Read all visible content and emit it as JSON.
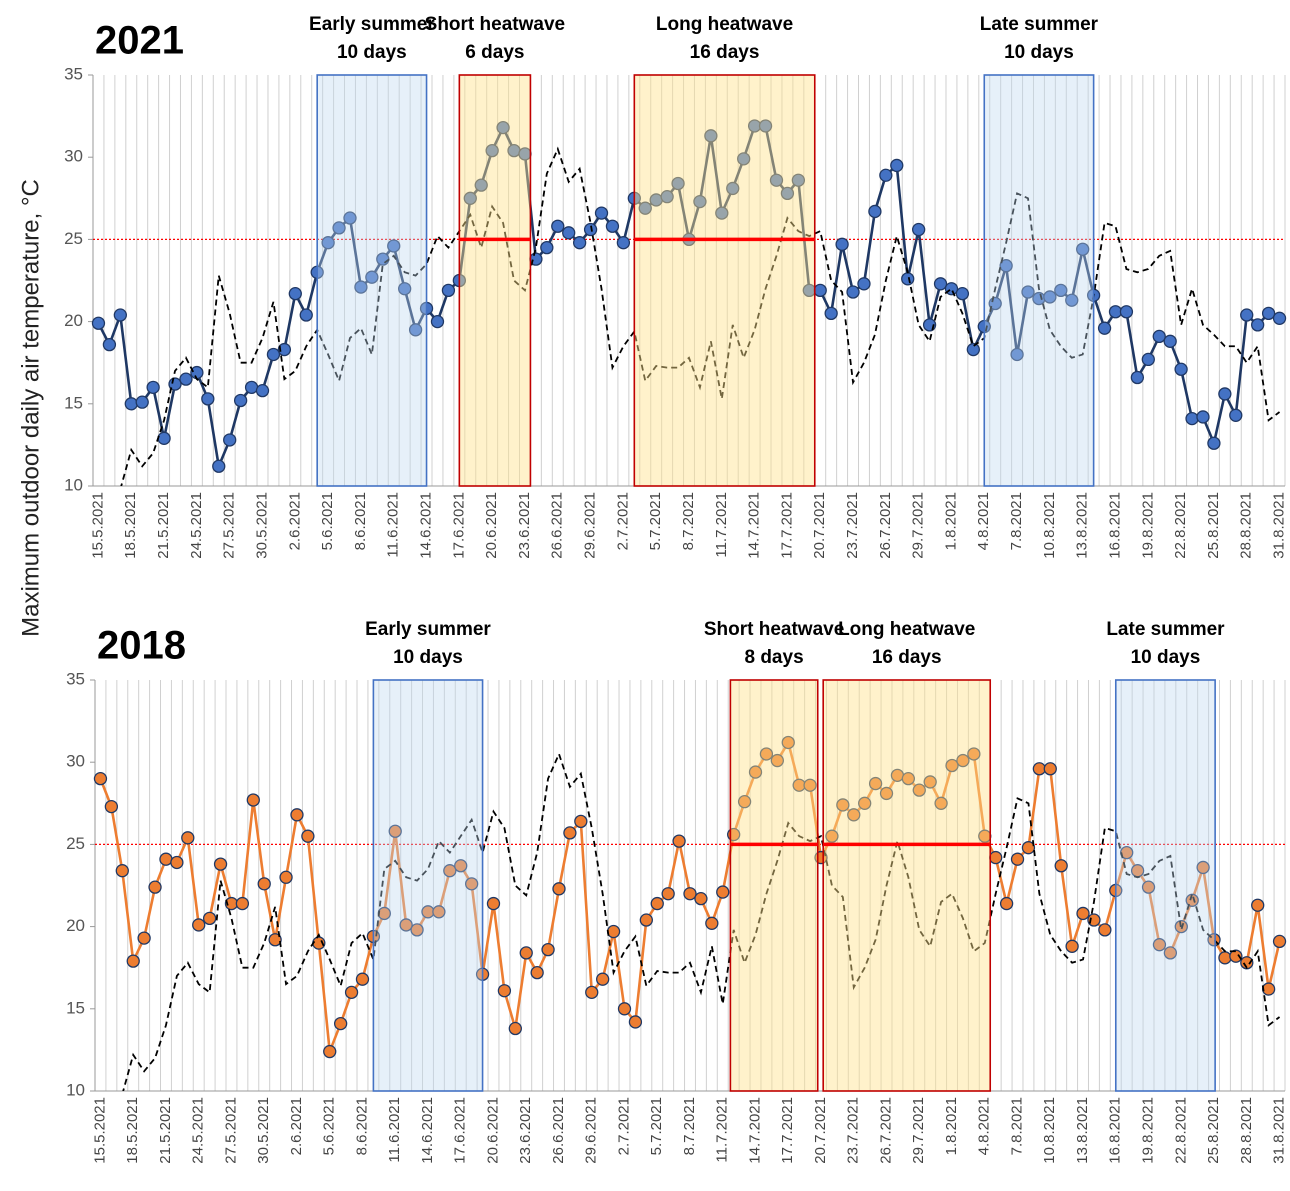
{
  "ylabel": "Maximum outdoor daily air temperature, °C",
  "chart_data": [
    {
      "type": "line",
      "title": "2021",
      "categories": [
        "15.5.2021",
        null,
        null,
        "18.5.2021",
        null,
        null,
        "21.5.2021",
        null,
        null,
        "24.5.2021",
        null,
        null,
        "27.5.2021",
        null,
        null,
        "30.5.2021",
        null,
        null,
        "2.6.2021",
        null,
        null,
        "5.6.2021",
        null,
        null,
        "8.6.2021",
        null,
        null,
        "11.6.2021",
        null,
        null,
        "14.6.2021",
        null,
        null,
        "17.6.2021",
        null,
        null,
        "20.6.2021",
        null,
        null,
        "23.6.2021",
        null,
        null,
        "26.6.2021",
        null,
        null,
        "29.6.2021",
        null,
        null,
        "2.7.2021",
        null,
        null,
        "5.7.2021",
        null,
        null,
        "8.7.2021",
        null,
        null,
        "11.7.2021",
        null,
        null,
        "14.7.2021",
        null,
        null,
        "17.7.2021",
        null,
        null,
        "20.7.2021",
        null,
        null,
        "23.7.2021",
        null,
        null,
        "26.7.2021",
        null,
        null,
        "29.7.2021",
        null,
        null,
        "1.8.2021",
        null,
        null,
        "4.8.2021",
        null,
        null,
        "7.8.2021",
        null,
        null,
        "10.8.2021",
        null,
        null,
        "13.8.2021",
        null,
        null,
        "16.8.2021",
        null,
        null,
        "19.8.2021",
        null,
        null,
        "22.8.2021",
        null,
        null,
        "25.8.2021",
        null,
        null,
        "28.8.2021",
        null,
        null,
        "31.8.2021"
      ],
      "series": [
        {
          "color": "#1f3864",
          "marker_color": "#4472c4",
          "dashed": false,
          "values": [
            19.9,
            18.6,
            20.4,
            15.0,
            15.1,
            16.0,
            12.9,
            16.2,
            16.5,
            16.9,
            15.3,
            11.2,
            12.8,
            15.2,
            16.0,
            15.8,
            18.0,
            18.3,
            21.7,
            20.4,
            23.0,
            24.8,
            25.7,
            26.3,
            22.1,
            22.7,
            23.8,
            24.6,
            22.0,
            19.5,
            20.8,
            20.0,
            21.9,
            22.5,
            27.5,
            28.3,
            30.4,
            31.8,
            30.4,
            30.2,
            23.8,
            24.5,
            25.8,
            25.4,
            24.8,
            25.6,
            26.6,
            25.8,
            24.8,
            27.5,
            26.9,
            27.4,
            27.6,
            28.4,
            25.0,
            27.3,
            31.3,
            26.6,
            28.1,
            29.9,
            31.9,
            31.9,
            28.6,
            27.8,
            28.6,
            21.9,
            21.9,
            20.5,
            24.7,
            21.8,
            22.3,
            26.7,
            28.9,
            29.5,
            22.6,
            25.6,
            19.8,
            22.3,
            22.0,
            21.7,
            18.3,
            19.7,
            21.1,
            23.4,
            18.0,
            21.8,
            21.4,
            21.5,
            21.9,
            21.3,
            24.4,
            21.6,
            19.6,
            20.6,
            20.6,
            16.6,
            17.7,
            19.1,
            18.8,
            17.1,
            14.1,
            14.2,
            12.6,
            15.6,
            14.3,
            20.4,
            19.8,
            20.5,
            20.2
          ]
        },
        {
          "color": "#000000",
          "dashed": true,
          "values": [
            null,
            null,
            9.8,
            12.2,
            11.2,
            12.0,
            14.0,
            17.0,
            17.8,
            16.5,
            16.0,
            22.8,
            20.5,
            17.5,
            17.5,
            19.0,
            21.2,
            16.5,
            17.0,
            18.5,
            19.5,
            18.0,
            16.4,
            19.0,
            19.6,
            18.0,
            23.5,
            24.0,
            23.0,
            22.8,
            23.5,
            25.2,
            24.5,
            25.5,
            26.5,
            24.5,
            27.0,
            26.0,
            22.5,
            21.9,
            24.5,
            29.0,
            30.5,
            28.5,
            29.3,
            26.0,
            22.0,
            17.2,
            18.5,
            19.4,
            16.4,
            17.3,
            17.2,
            17.2,
            17.8,
            16.0,
            18.8,
            15.3,
            19.8,
            17.8,
            19.5,
            22.0,
            24.0,
            26.3,
            25.5,
            25.2,
            25.5,
            22.5,
            21.8,
            16.3,
            17.5,
            19.2,
            22.5,
            25.2,
            23.0,
            19.8,
            18.8,
            21.5,
            22.0,
            20.5,
            18.5,
            19.0,
            22.0,
            24.8,
            27.8,
            27.5,
            22.0,
            19.5,
            18.5,
            17.8,
            18.0,
            21.5,
            26.0,
            25.8,
            23.2,
            23.0,
            23.2,
            24.0,
            24.3,
            19.8,
            22.0,
            19.8,
            19.2,
            18.5,
            18.5,
            17.5,
            18.5,
            14.0,
            14.5
          ]
        }
      ],
      "ylim": [
        10,
        35
      ],
      "yticks": [
        10,
        15,
        20,
        25,
        30,
        35
      ],
      "threshold": 25,
      "periods": [
        {
          "label": "Early summer",
          "days": "10 days",
          "range": [
            20,
            30
          ],
          "kind": "summer"
        },
        {
          "label": "Short heatwave",
          "days": "6 days",
          "range": [
            33,
            39.5
          ],
          "kind": "heatwave"
        },
        {
          "label": "Long heatwave",
          "days": "16 days",
          "range": [
            49,
            65.5
          ],
          "kind": "heatwave"
        },
        {
          "label": "Late summer",
          "days": "10 days",
          "range": [
            81,
            91
          ],
          "kind": "summer"
        }
      ]
    },
    {
      "type": "line",
      "title": "2018",
      "categories": [
        "15.5.2021",
        null,
        null,
        "18.5.2021",
        null,
        null,
        "21.5.2021",
        null,
        null,
        "24.5.2021",
        null,
        null,
        "27.5.2021",
        null,
        null,
        "30.5.2021",
        null,
        null,
        "2.6.2021",
        null,
        null,
        "5.6.2021",
        null,
        null,
        "8.6.2021",
        null,
        null,
        "11.6.2021",
        null,
        null,
        "14.6.2021",
        null,
        null,
        "17.6.2021",
        null,
        null,
        "20.6.2021",
        null,
        null,
        "23.6.2021",
        null,
        null,
        "26.6.2021",
        null,
        null,
        "29.6.2021",
        null,
        null,
        "2.7.2021",
        null,
        null,
        "5.7.2021",
        null,
        null,
        "8.7.2021",
        null,
        null,
        "11.7.2021",
        null,
        null,
        "14.7.2021",
        null,
        null,
        "17.7.2021",
        null,
        null,
        "20.7.2021",
        null,
        null,
        "23.7.2021",
        null,
        null,
        "26.7.2021",
        null,
        null,
        "29.7.2021",
        null,
        null,
        "1.8.2021",
        null,
        null,
        "4.8.2021",
        null,
        null,
        "7.8.2021",
        null,
        null,
        "10.8.2021",
        null,
        null,
        "13.8.2021",
        null,
        null,
        "16.8.2021",
        null,
        null,
        "19.8.2021",
        null,
        null,
        "22.8.2021",
        null,
        null,
        "25.8.2021",
        null,
        null,
        "28.8.2021",
        null,
        null,
        "31.8.2021"
      ],
      "series": [
        {
          "color": "#ed7d31",
          "marker_color": "#ed7d31",
          "dashed": false,
          "values": [
            29.0,
            27.3,
            23.4,
            17.9,
            19.3,
            22.4,
            24.1,
            23.9,
            25.4,
            20.1,
            20.5,
            23.8,
            21.4,
            21.4,
            27.7,
            22.6,
            19.2,
            23.0,
            26.8,
            25.5,
            19.0,
            12.4,
            14.1,
            16.0,
            16.8,
            19.4,
            20.8,
            25.8,
            20.1,
            19.8,
            20.9,
            20.9,
            23.4,
            23.7,
            22.6,
            17.1,
            21.4,
            16.1,
            13.8,
            18.4,
            17.2,
            18.6,
            22.3,
            25.7,
            26.4,
            16.0,
            16.8,
            19.7,
            15.0,
            14.2,
            20.4,
            21.4,
            22.0,
            25.2,
            22.0,
            21.7,
            20.2,
            22.1,
            25.6,
            27.6,
            29.4,
            30.5,
            30.1,
            31.2,
            28.6,
            28.6,
            24.2,
            25.5,
            27.4,
            26.8,
            27.5,
            28.7,
            28.1,
            29.2,
            29.0,
            28.3,
            28.8,
            27.5,
            29.8,
            30.1,
            30.5,
            25.5,
            24.2,
            21.4,
            24.1,
            24.8,
            29.6,
            29.6,
            23.7,
            18.8,
            20.8,
            20.4,
            19.8,
            22.2,
            24.5,
            23.4,
            22.4,
            18.9,
            18.4,
            20.0,
            21.6,
            23.6,
            19.2,
            18.1,
            18.2,
            17.8,
            21.3,
            16.2,
            19.1
          ]
        },
        {
          "color": "#000000",
          "dashed": true,
          "values": [
            null,
            null,
            9.8,
            12.2,
            11.2,
            12.0,
            14.0,
            17.0,
            17.8,
            16.5,
            16.0,
            22.8,
            20.5,
            17.5,
            17.5,
            19.0,
            21.2,
            16.5,
            17.0,
            18.5,
            19.5,
            18.0,
            16.4,
            19.0,
            19.6,
            18.0,
            23.5,
            24.0,
            23.0,
            22.8,
            23.5,
            25.2,
            24.5,
            25.5,
            26.5,
            24.5,
            27.0,
            26.0,
            22.5,
            21.9,
            24.5,
            29.0,
            30.5,
            28.5,
            29.3,
            26.0,
            22.0,
            17.2,
            18.5,
            19.4,
            16.4,
            17.3,
            17.2,
            17.2,
            17.8,
            16.0,
            18.8,
            15.3,
            19.8,
            17.8,
            19.5,
            22.0,
            24.0,
            26.3,
            25.5,
            25.2,
            25.5,
            22.5,
            21.8,
            16.3,
            17.5,
            19.2,
            22.5,
            25.2,
            23.0,
            19.8,
            18.8,
            21.5,
            22.0,
            20.5,
            18.5,
            19.0,
            22.0,
            24.8,
            27.8,
            27.5,
            22.0,
            19.5,
            18.5,
            17.8,
            18.0,
            21.5,
            26.0,
            25.8,
            23.2,
            23.0,
            23.2,
            24.0,
            24.3,
            19.8,
            22.0,
            19.8,
            19.2,
            18.5,
            18.5,
            17.5,
            18.5,
            14.0,
            14.5
          ]
        }
      ],
      "ylim": [
        10,
        35
      ],
      "yticks": [
        10,
        15,
        20,
        25,
        30,
        35
      ],
      "threshold": 25,
      "periods": [
        {
          "label": "Early summer",
          "days": "10 days",
          "range": [
            25,
            35
          ],
          "kind": "summer"
        },
        {
          "label": "Short heatwave",
          "days": "8 days",
          "range": [
            57.7,
            65.7
          ],
          "kind": "heatwave"
        },
        {
          "label": "Long heatwave",
          "days": "16 days",
          "range": [
            66.2,
            81.5
          ],
          "kind": "heatwave"
        },
        {
          "label": "Late summer",
          "days": "10 days",
          "range": [
            93,
            102.1
          ],
          "kind": "summer"
        }
      ]
    }
  ]
}
